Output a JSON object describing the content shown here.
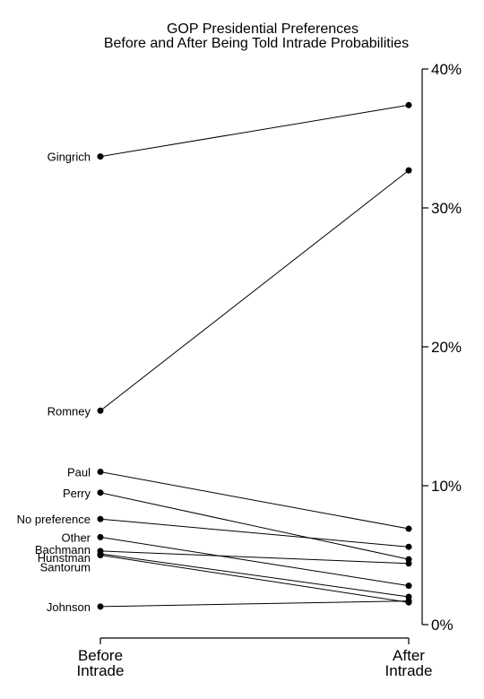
{
  "chart_data": {
    "type": "line",
    "title": "GOP Presidential Preferences",
    "subtitle": "Before and After Being Told Intrade Probabilities",
    "categories": [
      [
        "Before",
        "Intrade"
      ],
      [
        "After",
        "Intrade"
      ]
    ],
    "ylim": [
      0,
      40
    ],
    "yticks": [
      0,
      10,
      20,
      30,
      40
    ],
    "ytick_suffix": "%",
    "y_axis_side": "right",
    "grid": false,
    "series": [
      {
        "name": "Gingrich",
        "values": [
          33.7,
          37.4
        ]
      },
      {
        "name": "Romney",
        "values": [
          15.4,
          32.7
        ]
      },
      {
        "name": "Paul",
        "values": [
          11.0,
          6.9
        ]
      },
      {
        "name": "Perry",
        "values": [
          9.5,
          4.7
        ]
      },
      {
        "name": "No preference",
        "values": [
          7.6,
          5.6
        ]
      },
      {
        "name": "Other",
        "values": [
          6.3,
          2.8
        ]
      },
      {
        "name": "Bachmann",
        "values": [
          5.3,
          4.4
        ]
      },
      {
        "name": "Hunstman",
        "values": [
          5.1,
          2.0
        ]
      },
      {
        "name": "Santorum",
        "values": [
          5.0,
          1.6
        ]
      },
      {
        "name": "Johnson",
        "values": [
          1.3,
          1.7
        ]
      }
    ]
  }
}
